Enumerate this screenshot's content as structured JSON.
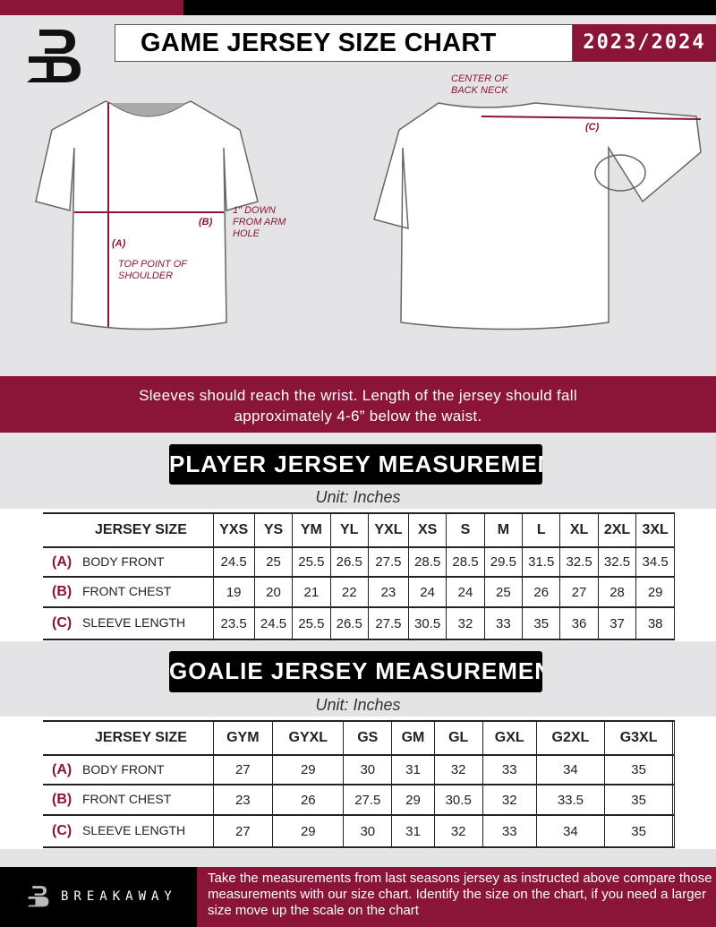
{
  "header": {
    "title": "GAME JERSEY SIZE CHART",
    "season": "2023/2024"
  },
  "diagram": {
    "label_a": "(A)",
    "label_a_note": "TOP POINT OF SHOULDER",
    "label_b": "(B)",
    "label_b_note": "1\" DOWN FROM ARM HOLE",
    "label_c": "(C)",
    "label_c_note": "CENTER OF BACK NECK"
  },
  "instruction": "Sleeves should reach the wrist. Length of the jersey should fall approximately 4-6” below the waist.",
  "player": {
    "title": "PLAYER JERSEY MEASUREMENTS",
    "unit": "Unit: Inches",
    "size_label": "JERSEY SIZE",
    "sizes": [
      "YXS",
      "YS",
      "YM",
      "YL",
      "YXL",
      "XS",
      "S",
      "M",
      "L",
      "XL",
      "2XL",
      "3XL"
    ],
    "rows": [
      {
        "code": "(A)",
        "label": "BODY FRONT",
        "values": [
          "24.5",
          "25",
          "25.5",
          "26.5",
          "27.5",
          "28.5",
          "28.5",
          "29.5",
          "31.5",
          "32.5",
          "32.5",
          "34.5"
        ]
      },
      {
        "code": "(B)",
        "label": "FRONT CHEST",
        "values": [
          "19",
          "20",
          "21",
          "22",
          "23",
          "24",
          "24",
          "25",
          "26",
          "27",
          "28",
          "29"
        ]
      },
      {
        "code": "(C)",
        "label": "SLEEVE LENGTH",
        "values": [
          "23.5",
          "24.5",
          "25.5",
          "26.5",
          "27.5",
          "30.5",
          "32",
          "33",
          "35",
          "36",
          "37",
          "38"
        ]
      }
    ]
  },
  "goalie": {
    "title": "GOALIE JERSEY MEASUREMENTS",
    "unit": "Unit: Inches",
    "size_label": "JERSEY SIZE",
    "sizes": [
      "GYM",
      "GYXL",
      "GS",
      "GM",
      "GL",
      "GXL",
      "G2XL",
      "G3XL",
      ""
    ],
    "rows": [
      {
        "code": "(A)",
        "label": "BODY FRONT",
        "values": [
          "27",
          "29",
          "30",
          "31",
          "32",
          "33",
          "34",
          "35",
          ""
        ]
      },
      {
        "code": "(B)",
        "label": "FRONT CHEST",
        "values": [
          "23",
          "26",
          "27.5",
          "29",
          "30.5",
          "32",
          "33.5",
          "35",
          ""
        ]
      },
      {
        "code": "(C)",
        "label": "SLEEVE LENGTH",
        "values": [
          "27",
          "29",
          "30",
          "31",
          "32",
          "33",
          "34",
          "35",
          ""
        ]
      }
    ]
  },
  "footer": {
    "brand": "BREAKAWAY",
    "note": "Take the measurements from last seasons jersey as instructed above compare those measurements  with our size chart. Identify the size on the chart, if you need a larger size move up the scale on the chart"
  },
  "colors": {
    "accent": "#8a1538",
    "dark": "#000000"
  }
}
